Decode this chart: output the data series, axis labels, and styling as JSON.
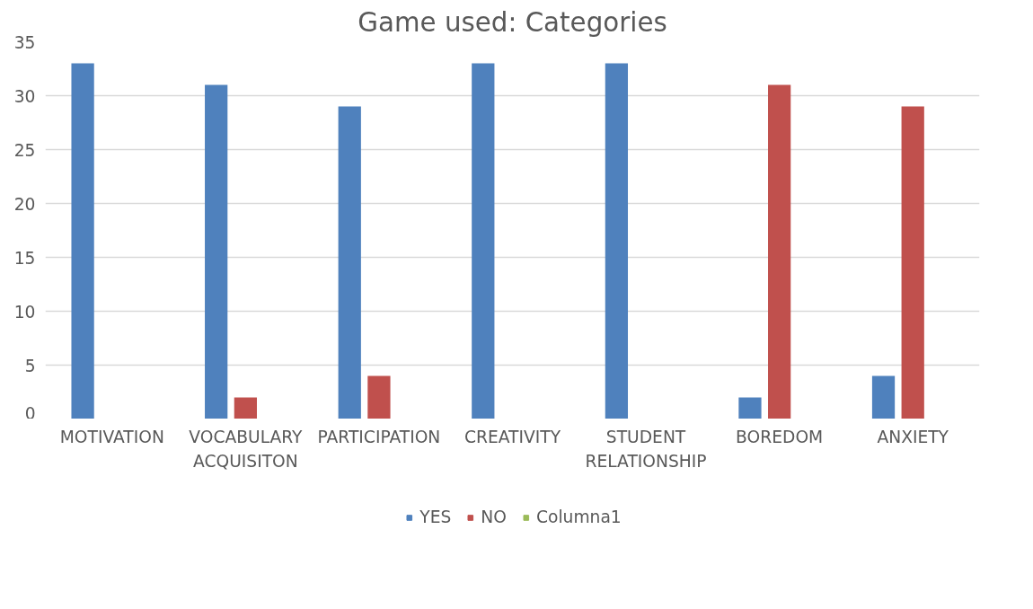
{
  "chart_data": {
    "type": "bar",
    "title": "Game used: Categories",
    "categories": [
      "MOTIVATION",
      "VOCABULARY ACQUISITON",
      "PARTICIPATION",
      "CREATIVITY",
      "STUDENT RELATIONSHIP",
      "BOREDOM",
      "ANXIETY"
    ],
    "series": [
      {
        "name": "YES",
        "color": "#4f81bd",
        "values": [
          33,
          31,
          29,
          33,
          33,
          2,
          4
        ]
      },
      {
        "name": "NO",
        "color": "#c0504d",
        "values": [
          null,
          2,
          4,
          null,
          null,
          31,
          29
        ]
      },
      {
        "name": "Columna1",
        "color": "#9bbb59",
        "values": [
          null,
          null,
          null,
          null,
          null,
          null,
          null
        ]
      }
    ],
    "ylim": [
      0,
      35
    ],
    "yticks": [
      0,
      5,
      10,
      15,
      20,
      25,
      30,
      35
    ],
    "grid": "y",
    "legend": "bottom"
  }
}
